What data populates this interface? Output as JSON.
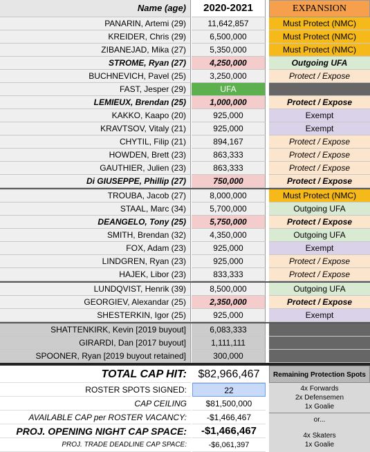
{
  "header": {
    "name": "Name (age)",
    "season": "2020-2021",
    "expansion": "EXPANSION"
  },
  "rows": [
    {
      "name": "PANARIN, Artemi (29)",
      "salary": "11,642,857",
      "status": "Must Protect (NMC)"
    },
    {
      "name": "KREIDER, Chris (29)",
      "salary": "6,500,000",
      "status": "Must Protect (NMC)"
    },
    {
      "name": "ZIBANEJAD, Mika (27)",
      "salary": "5,350,000",
      "status": "Must Protect (NMC)"
    },
    {
      "name": "STROME, Ryan (27)",
      "salary": "4,250,000",
      "status": "Outgoing UFA"
    },
    {
      "name": "BUCHNEVICH, Pavel (25)",
      "salary": "3,250,000",
      "status": "Protect / Expose"
    },
    {
      "name": "FAST, Jesper (29)",
      "salary": "UFA"
    },
    {
      "name": "LEMIEUX, Brendan (25)",
      "salary": "1,000,000",
      "status": "Protect / Expose"
    },
    {
      "name": "KAKKO, Kaapo (20)",
      "salary": "925,000",
      "status": "Exempt"
    },
    {
      "name": "KRAVTSOV, Vitaly (21)",
      "salary": "925,000",
      "status": "Exempt"
    },
    {
      "name": "CHYTIL, Filip (21)",
      "salary": "894,167",
      "status": "Protect / Expose"
    },
    {
      "name": "HOWDEN, Brett (23)",
      "salary": "863,333",
      "status": "Protect / Expose"
    },
    {
      "name": "GAUTHIER, Julien (23)",
      "salary": "863,333",
      "status": "Protect / Expose"
    },
    {
      "name": "Di GIUSEPPE, Phillip (27)",
      "salary": "750,000",
      "status": "Protect / Expose"
    },
    {
      "name": "TROUBA, Jacob (27)",
      "salary": "8,000,000",
      "status": "Must Protect (NMC)"
    },
    {
      "name": "STAAL, Marc (34)",
      "salary": "5,700,000",
      "status": "Outgoing UFA"
    },
    {
      "name": "DEANGELO, Tony (25)",
      "salary": "5,750,000",
      "status": "Protect / Expose"
    },
    {
      "name": "SMITH, Brendan (32)",
      "salary": "4,350,000",
      "status": "Outgoing UFA"
    },
    {
      "name": "FOX, Adam (23)",
      "salary": "925,000",
      "status": "Exempt"
    },
    {
      "name": "LINDGREN, Ryan (23)",
      "salary": "925,000",
      "status": "Protect / Expose"
    },
    {
      "name": "HAJEK, Libor (23)",
      "salary": "833,333",
      "status": "Protect / Expose"
    },
    {
      "name": "LUNDQVIST, Henrik (39)",
      "salary": "8,500,000",
      "status": "Outgoing UFA"
    },
    {
      "name": "GEORGIEV, Alexandar (25)",
      "salary": "2,350,000",
      "status": "Protect / Expose"
    },
    {
      "name": "SHESTERKIN, Igor (25)",
      "salary": "925,000",
      "status": "Exempt"
    },
    {
      "name": "SHATTENKIRK, Kevin [2019 buyout]",
      "salary": "6,083,333"
    },
    {
      "name": "GIRARDI, Dan [2017 buyout]",
      "salary": "1,111,111"
    },
    {
      "name": "SPOONER, Ryan [2019 buyout retained]",
      "salary": "300,000"
    }
  ],
  "summary": [
    {
      "label": "TOTAL CAP HIT:",
      "value": "$82,966,467"
    },
    {
      "label": "ROSTER SPOTS SIGNED:",
      "value": "22"
    },
    {
      "label": "CAP CEILING",
      "value": "$81,500,000"
    },
    {
      "label": "AVAILABLE CAP per ROSTER VACANCY:",
      "value": "-$1,466,467"
    },
    {
      "label": "PROJ. OPENING NIGHT CAP SPACE:",
      "value": "-$1,466,467"
    },
    {
      "label": "PROJ. TRADE DEADLINE CAP SPACE:",
      "value": "-$6,061,397"
    }
  ],
  "protection": {
    "title": "Remaining Protection Spots",
    "option_a": [
      "4x Forwards",
      "2x Defensemen",
      "1x Goalie"
    ],
    "or": "or...",
    "option_b": [
      "4x Skaters",
      "1x Goalie"
    ]
  }
}
